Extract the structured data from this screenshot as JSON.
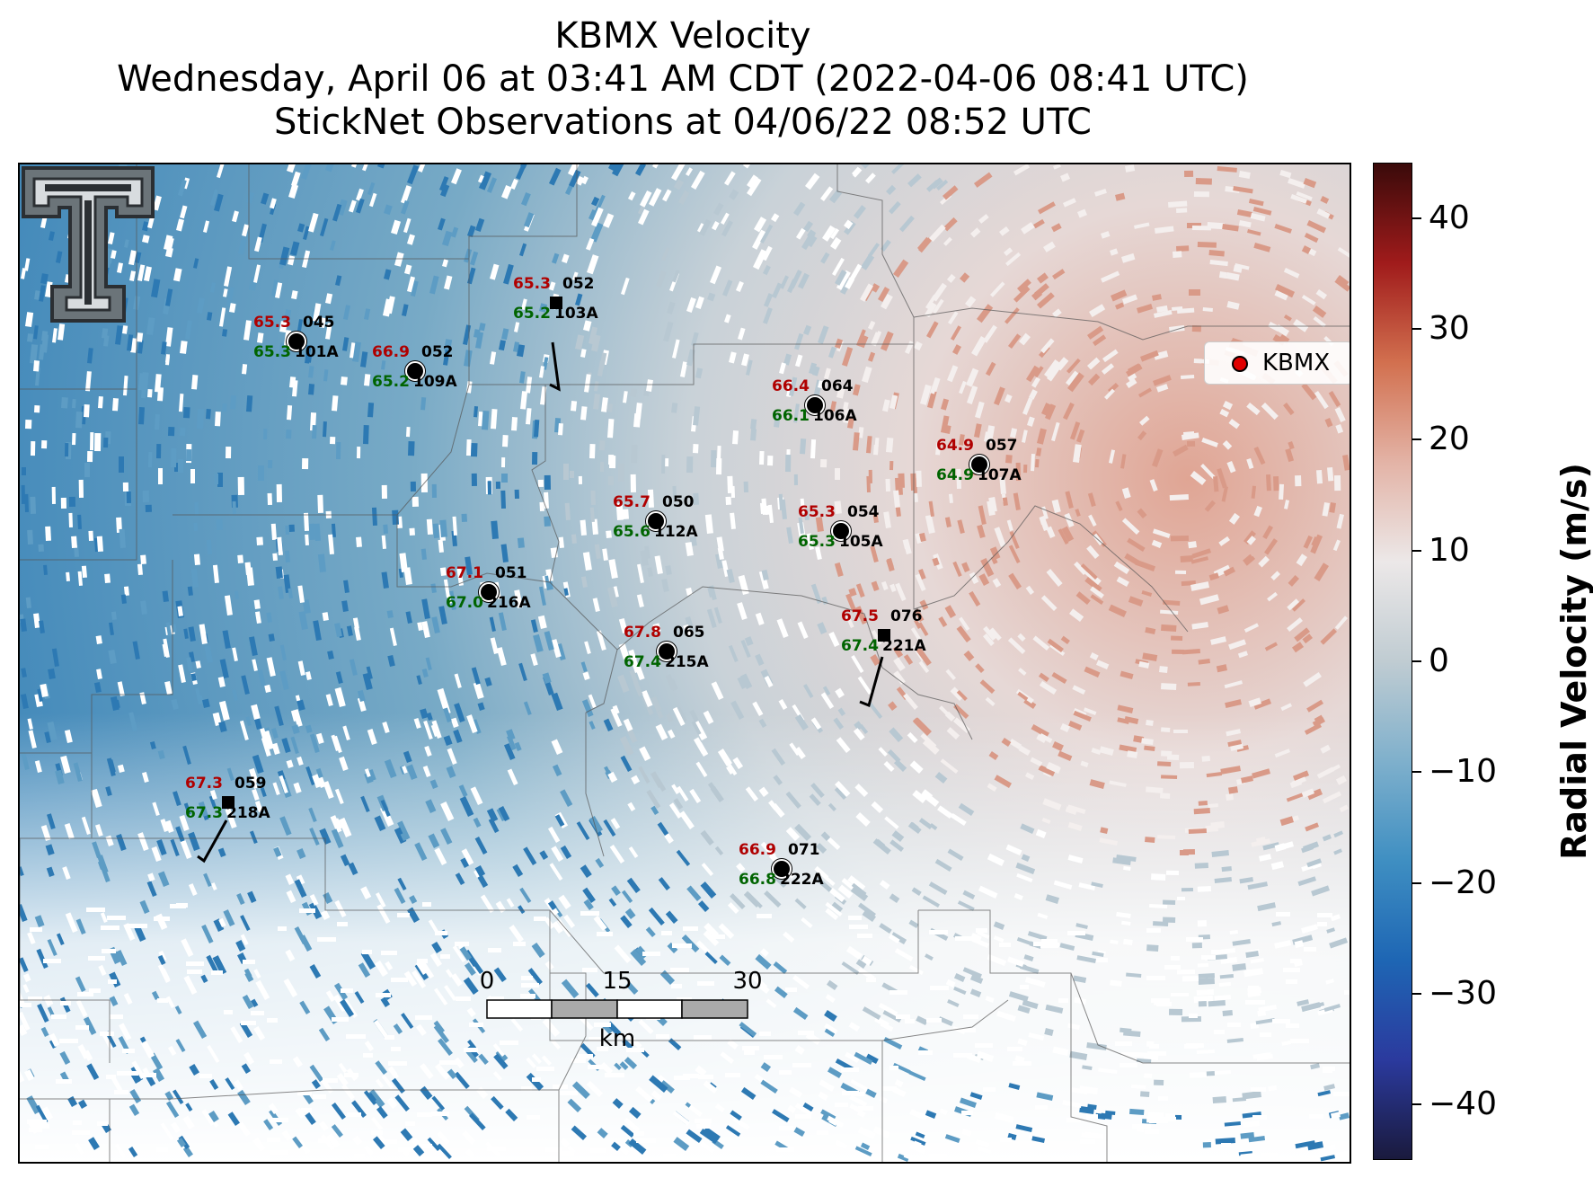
{
  "title": {
    "line1": "KBMX Velocity",
    "line2": "Wednesday, April 06 at 03:41 AM CDT (2022-04-06 08:41 UTC)",
    "line3": "StickNet Observations at 04/06/22 08:52 UTC"
  },
  "legend": {
    "label": "KBMX",
    "marker_color": "#e00000"
  },
  "colorbar": {
    "label": "Radial Velocity (m/s)",
    "range": [
      -45,
      45
    ],
    "ticks": [
      "40",
      "30",
      "20",
      "10",
      "0",
      "−10",
      "−20",
      "−30",
      "−40"
    ],
    "tick_values": [
      40,
      30,
      20,
      10,
      0,
      -10,
      -20,
      -30,
      -40
    ],
    "colors": [
      "#1a1a3d",
      "#2b3a9e",
      "#1e66b4",
      "#3f8fc2",
      "#7fb0cc",
      "#c0ccd2",
      "#ece8e8",
      "#e3b3a6",
      "#d2704f",
      "#a01b1b",
      "#3a0a0a"
    ]
  },
  "scalebar": {
    "ticks": [
      "0",
      "15",
      "30"
    ],
    "unit": "km"
  },
  "stations": [
    {
      "id": "101A",
      "temp": "65.3",
      "dew": "65.3",
      "wind": "045",
      "marker": "circle"
    },
    {
      "id": "109A",
      "temp": "66.9",
      "dew": "65.2",
      "wind": "052",
      "marker": "circle"
    },
    {
      "id": "103A",
      "temp": "65.3",
      "dew": "65.2",
      "wind": "052",
      "marker": "square"
    },
    {
      "id": "106A",
      "temp": "66.4",
      "dew": "66.1",
      "wind": "064",
      "marker": "circle"
    },
    {
      "id": "107A",
      "temp": "64.9",
      "dew": "64.9",
      "wind": "057",
      "marker": "circle"
    },
    {
      "id": "112A",
      "temp": "65.7",
      "dew": "65.6",
      "wind": "050",
      "marker": "circle"
    },
    {
      "id": "105A",
      "temp": "65.3",
      "dew": "65.3",
      "wind": "054",
      "marker": "circle"
    },
    {
      "id": "216A",
      "temp": "67.1",
      "dew": "67.0",
      "wind": "051",
      "marker": "circle"
    },
    {
      "id": "215A",
      "temp": "67.8",
      "dew": "67.4",
      "wind": "065",
      "marker": "circle"
    },
    {
      "id": "221A",
      "temp": "67.5",
      "dew": "67.4",
      "wind": "076",
      "marker": "square"
    },
    {
      "id": "218A",
      "temp": "67.3",
      "dew": "67.3",
      "wind": "059",
      "marker": "square"
    },
    {
      "id": "222A",
      "temp": "66.9",
      "dew": "66.8",
      "wind": "071",
      "marker": "circle"
    }
  ]
}
